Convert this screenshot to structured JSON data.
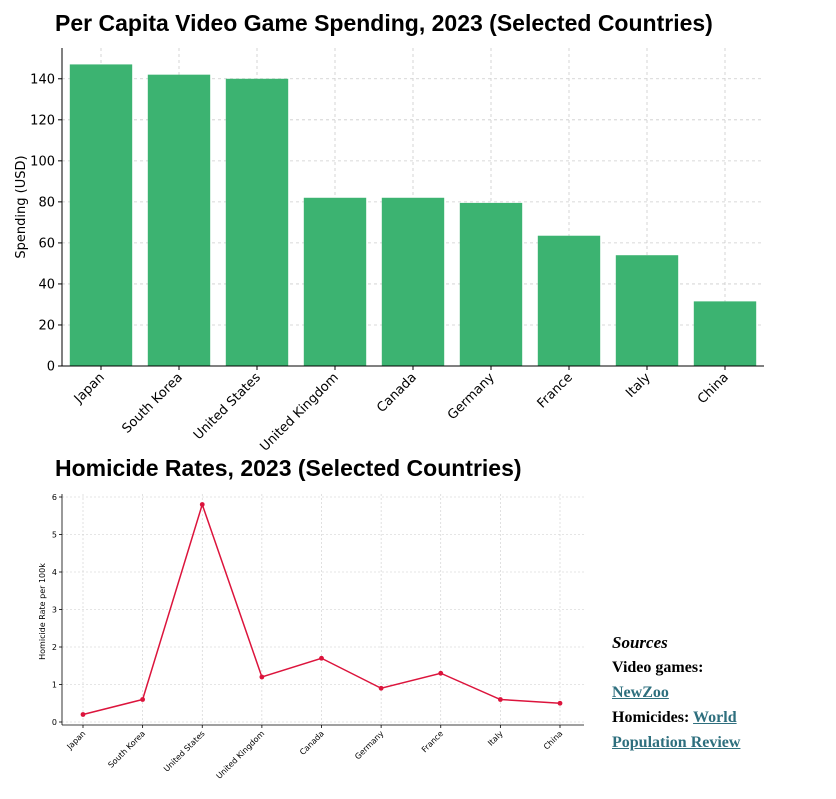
{
  "chart_data": [
    {
      "type": "bar",
      "title": "Per Capita Video Game Spending, 2023 (Selected Countries)",
      "xlabel": "",
      "ylabel": "Spending (USD)",
      "categories": [
        "Japan",
        "South Korea",
        "United States",
        "United Kingdom",
        "Canada",
        "Germany",
        "France",
        "Italy",
        "China"
      ],
      "values": [
        147,
        142,
        140,
        82,
        82,
        79.5,
        63.5,
        54,
        31.5
      ],
      "ylim": [
        0,
        155
      ],
      "yticks": [
        0,
        20,
        40,
        60,
        80,
        100,
        120,
        140
      ],
      "grid": true,
      "color": "#3cb371"
    },
    {
      "type": "line",
      "title": "Homicide Rates, 2023 (Selected Countries)",
      "xlabel": "",
      "ylabel": "Homicide Rate per 100k",
      "categories": [
        "Japan",
        "South Korea",
        "United States",
        "United Kingdom",
        "Canada",
        "Germany",
        "France",
        "Italy",
        "China"
      ],
      "values": [
        0.2,
        0.6,
        5.8,
        1.2,
        1.7,
        0.9,
        1.3,
        0.6,
        0.5
      ],
      "ylim": [
        0,
        6
      ],
      "yticks": [
        0,
        1,
        2,
        3,
        4,
        5,
        6
      ],
      "grid": true,
      "color": "#dc143c"
    }
  ],
  "sources": {
    "heading": "Sources",
    "video_label": "Video games:",
    "video_link": "NewZoo",
    "homicide_label": "Homicides:",
    "homicide_link": "World Population Review"
  }
}
